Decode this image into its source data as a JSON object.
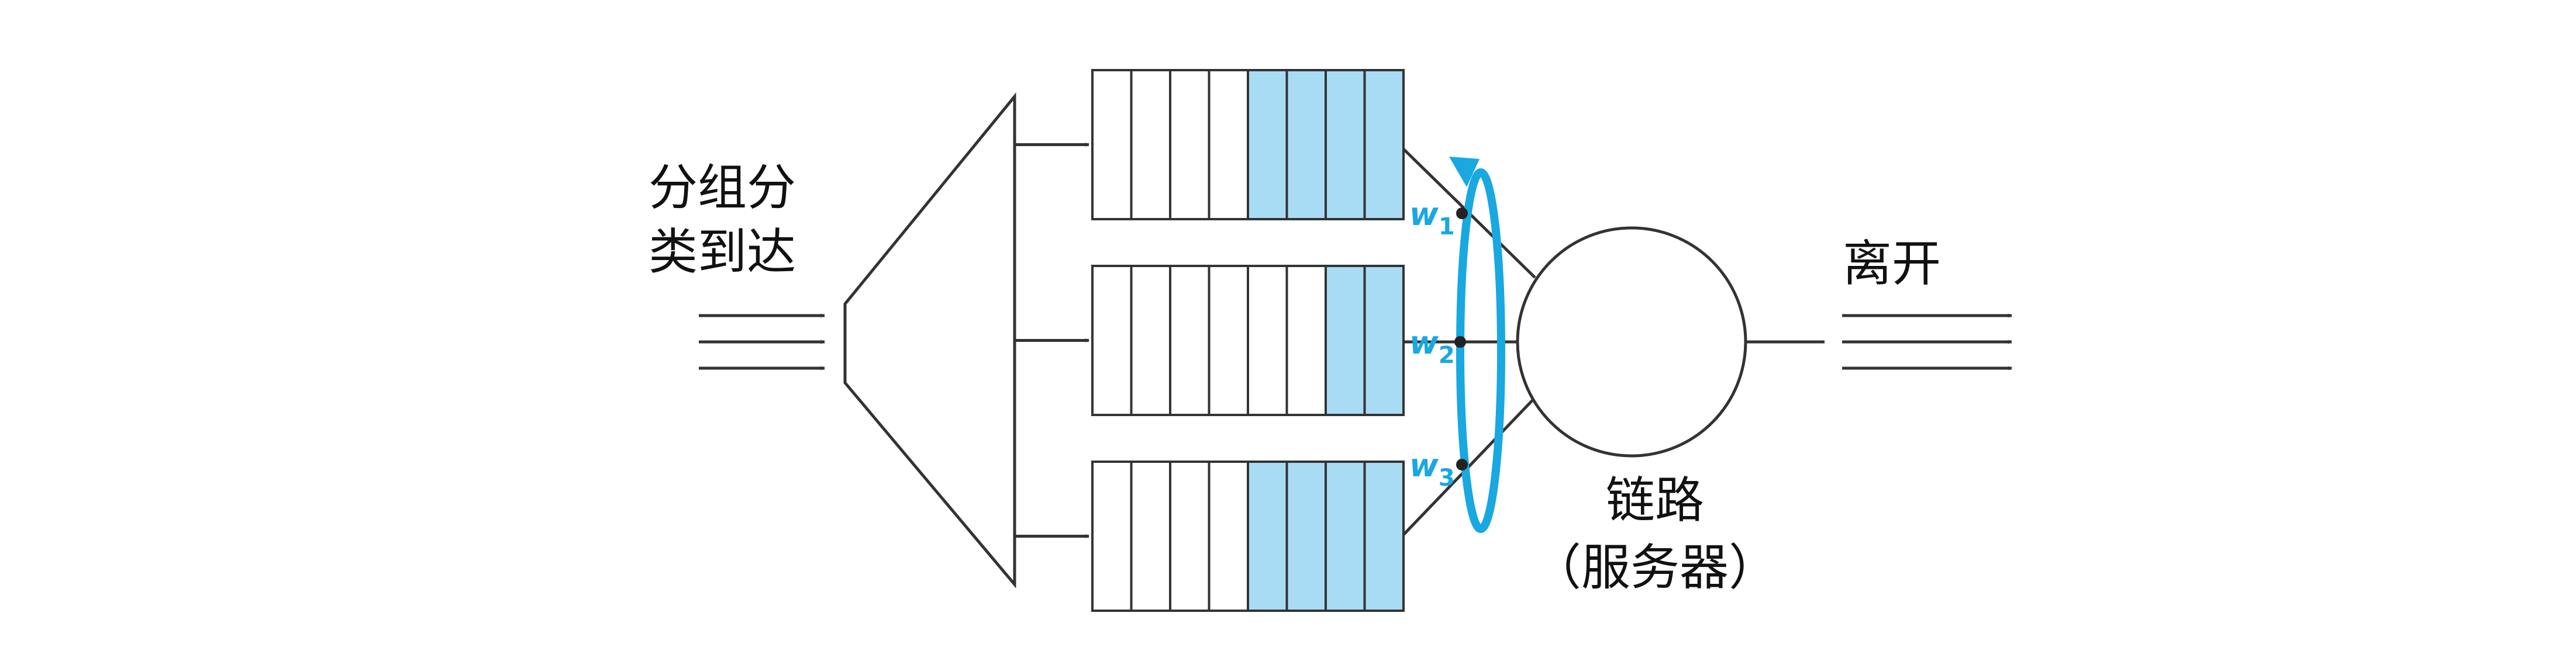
{
  "labels": {
    "arrival_line1": "分组分",
    "arrival_line2": "类到达",
    "departure": "离开",
    "link_line1": "链路",
    "link_line2": "（服务器）"
  },
  "weights": [
    {
      "symbol": "w",
      "sub": "1"
    },
    {
      "symbol": "w",
      "sub": "2"
    },
    {
      "symbol": "w",
      "sub": "3"
    }
  ],
  "queues": [
    {
      "slots": 8,
      "filled": 4
    },
    {
      "slots": 8,
      "filled": 2
    },
    {
      "slots": 8,
      "filled": 4
    }
  ],
  "colors": {
    "line": "#333333",
    "filled_slot": "#a8dcf5",
    "empty_slot": "#ffffff",
    "scheduler": "#19a8e0"
  }
}
